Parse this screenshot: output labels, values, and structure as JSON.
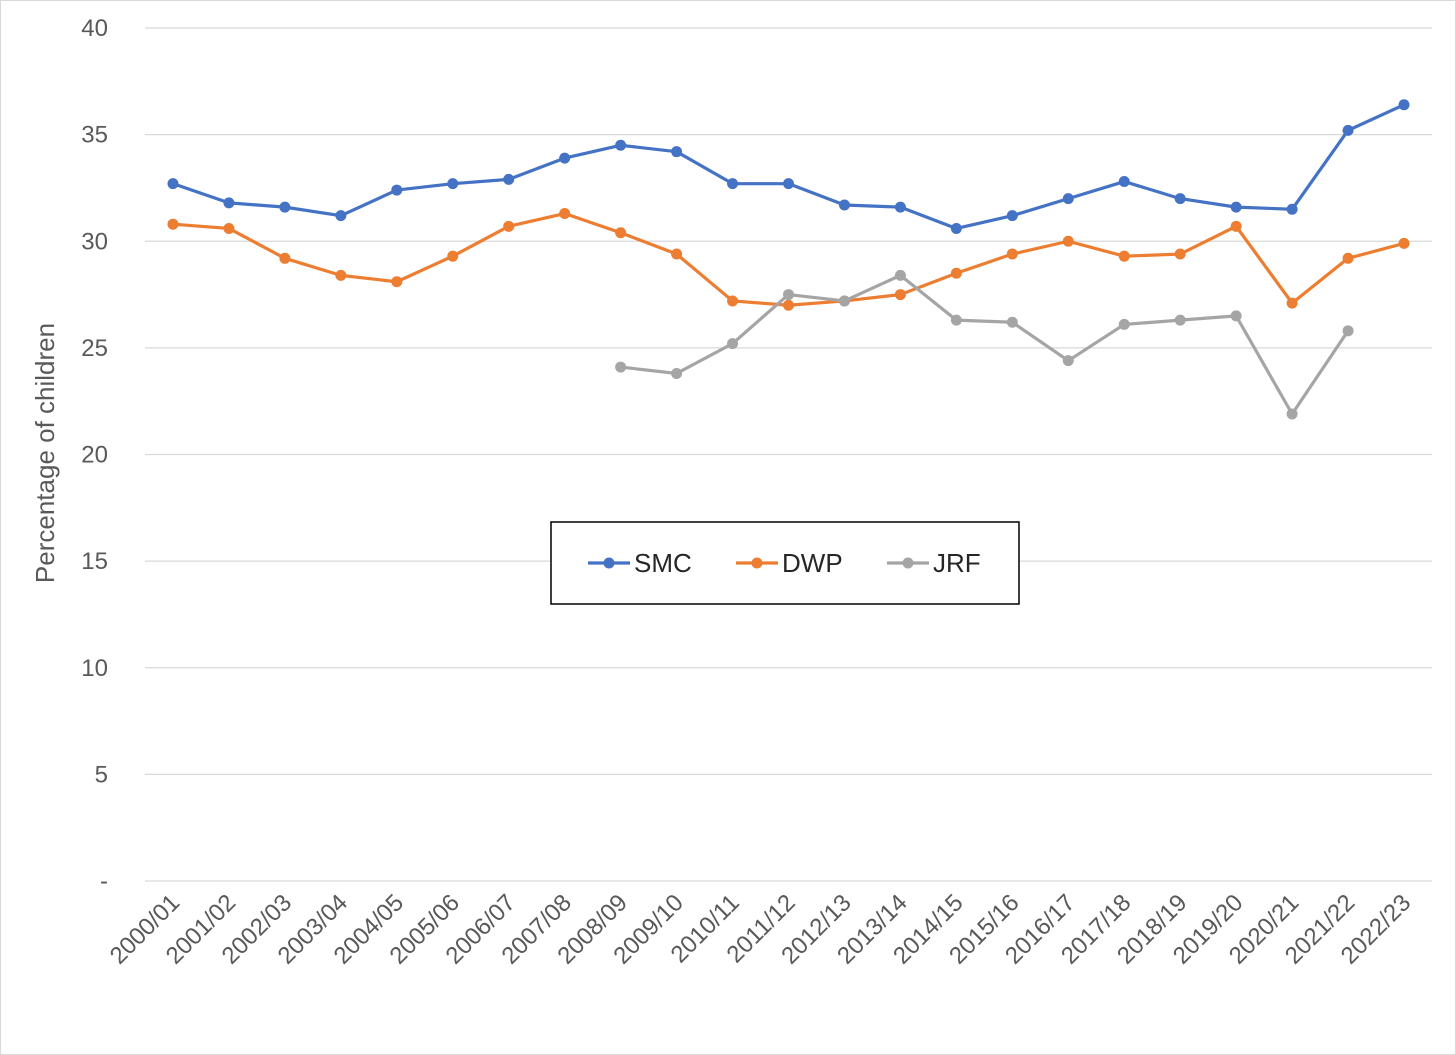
{
  "chart_data": {
    "type": "line",
    "title": "",
    "xlabel": "",
    "ylabel": "Percentage of children",
    "ylim": [
      0,
      40
    ],
    "yticks": [
      {
        "value": 0,
        "label": "-"
      },
      {
        "value": 5,
        "label": "5"
      },
      {
        "value": 10,
        "label": "10"
      },
      {
        "value": 15,
        "label": "15"
      },
      {
        "value": 20,
        "label": "20"
      },
      {
        "value": 25,
        "label": "25"
      },
      {
        "value": 30,
        "label": "30"
      },
      {
        "value": 35,
        "label": "35"
      },
      {
        "value": 40,
        "label": "40"
      }
    ],
    "grid": "horizontal",
    "legend": "center",
    "categories": [
      "2000/01",
      "2001/02",
      "2002/03",
      "2003/04",
      "2004/05",
      "2005/06",
      "2006/07",
      "2007/08",
      "2008/09",
      "2009/10",
      "2010/11",
      "2011/12",
      "2012/13",
      "2013/14",
      "2014/15",
      "2015/16",
      "2016/17",
      "2017/18",
      "2018/19",
      "2019/20",
      "2020/21",
      "2021/22",
      "2022/23"
    ],
    "series": [
      {
        "name": "SMC",
        "color": "#4472C4",
        "values": [
          32.7,
          31.8,
          31.6,
          31.2,
          32.4,
          32.7,
          32.9,
          33.9,
          34.5,
          34.2,
          32.7,
          32.7,
          31.7,
          31.6,
          30.6,
          31.2,
          32.0,
          32.8,
          32.0,
          31.6,
          31.5,
          35.2,
          36.4
        ]
      },
      {
        "name": "DWP",
        "color": "#ED7D31",
        "values": [
          30.8,
          30.6,
          29.2,
          28.4,
          28.1,
          29.3,
          30.7,
          31.3,
          30.4,
          29.4,
          27.2,
          27.0,
          27.2,
          27.5,
          28.5,
          29.4,
          30.0,
          29.3,
          29.4,
          30.7,
          27.1,
          29.2,
          29.9
        ]
      },
      {
        "name": "JRF",
        "color": "#A5A5A5",
        "values": [
          null,
          null,
          null,
          null,
          null,
          null,
          null,
          null,
          24.1,
          23.8,
          25.2,
          27.5,
          27.2,
          28.4,
          26.3,
          26.2,
          24.4,
          26.1,
          26.3,
          26.5,
          21.9,
          25.8,
          null
        ]
      }
    ]
  }
}
